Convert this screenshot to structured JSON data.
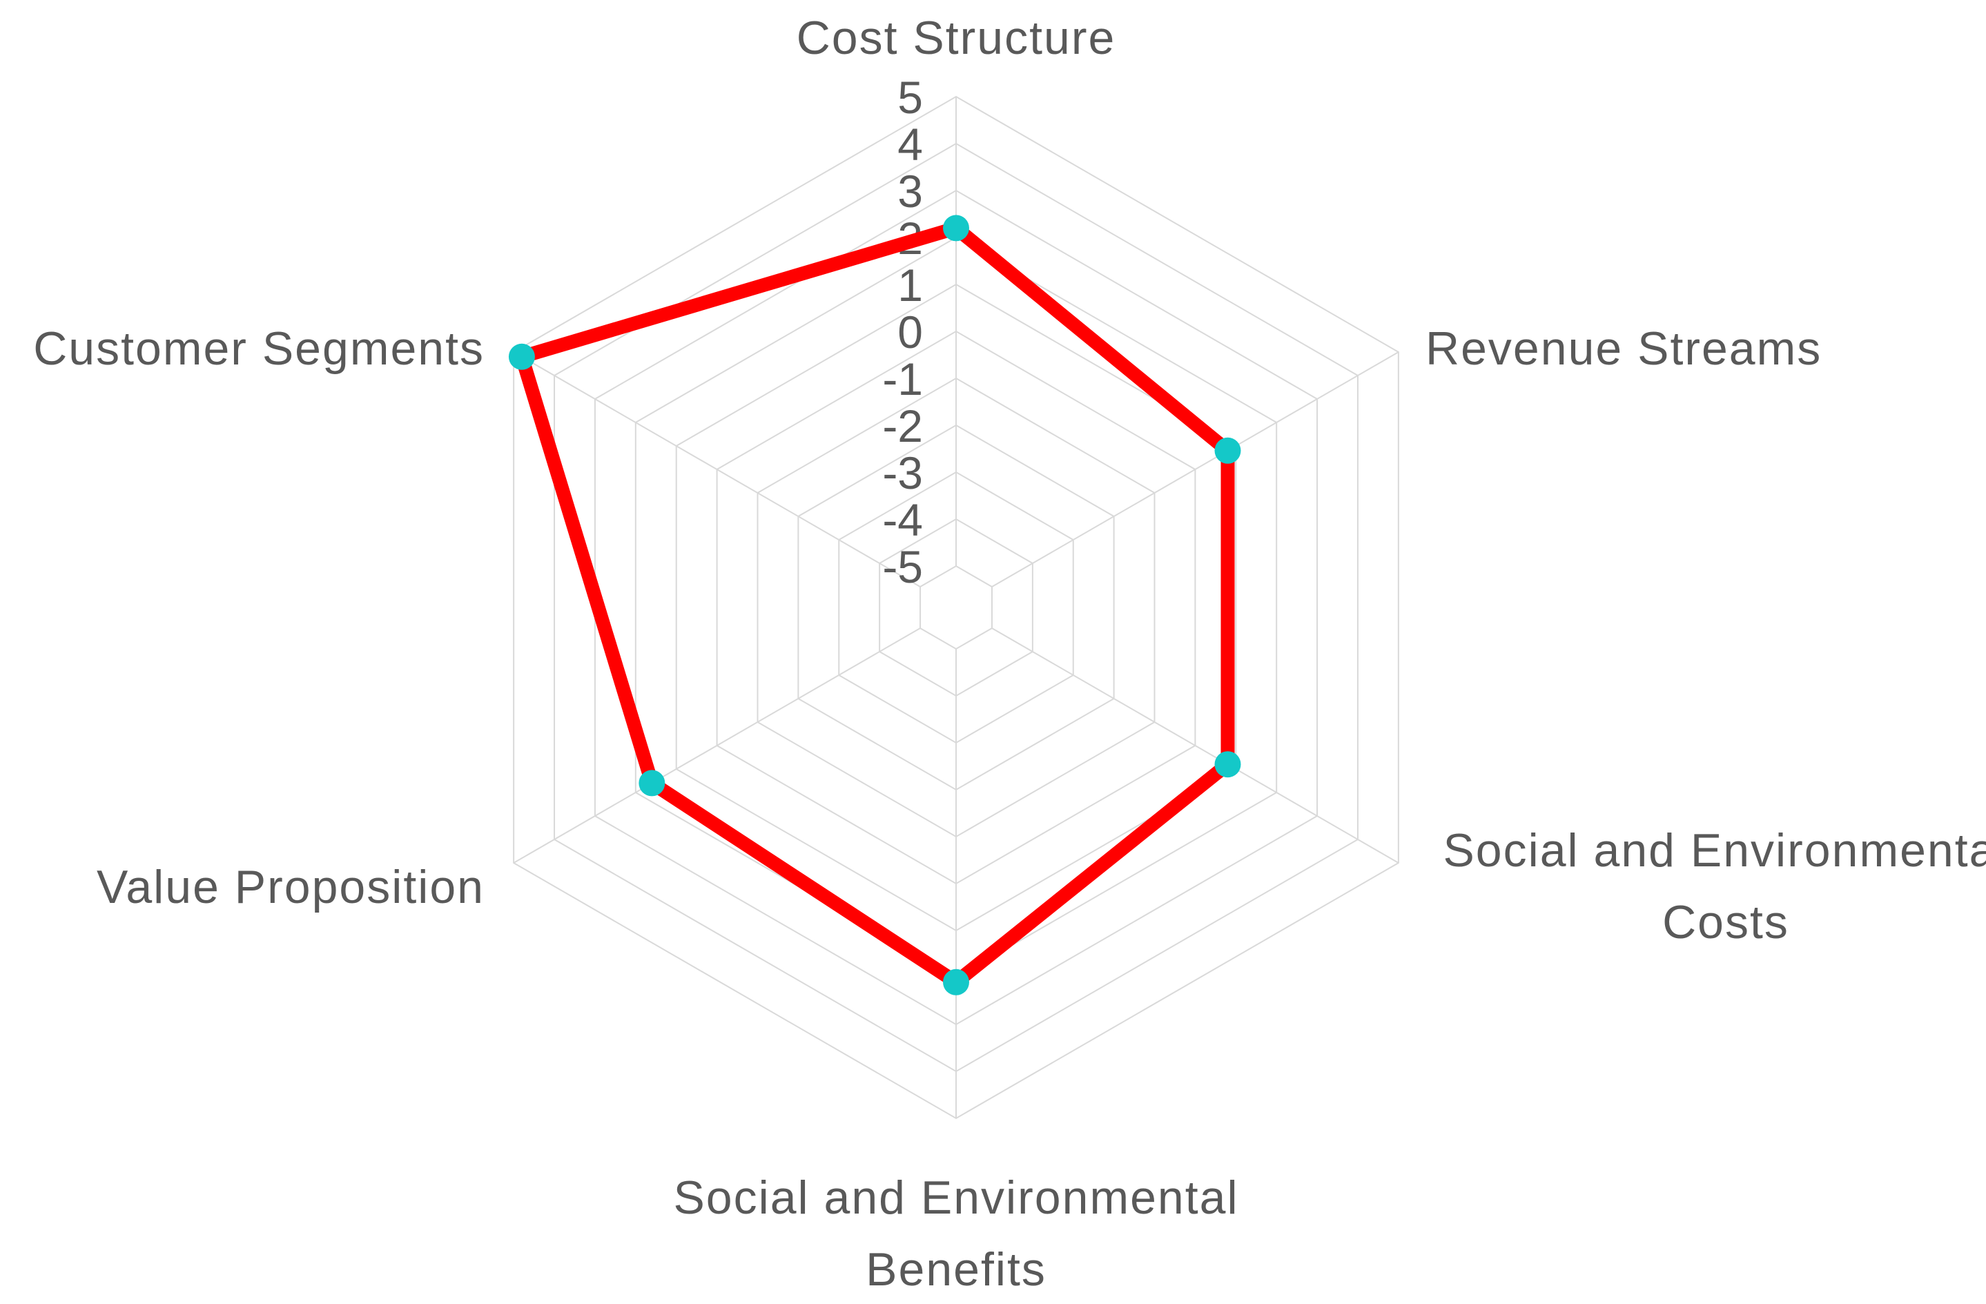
{
  "colors": {
    "series_line": "#ff0000",
    "series_marker": "#14c8c8",
    "gridline": "#d9d9d9",
    "text": "#595959",
    "background": "#ffffff"
  },
  "chart_data": {
    "type": "radar",
    "title": "",
    "categories": [
      [
        "Cost Structure"
      ],
      [
        "Revenue Streams"
      ],
      [
        "Social and Environmental",
        "Costs"
      ],
      [
        "Social and Environmental",
        "Benefits"
      ],
      [
        "Value Proposition"
      ],
      [
        "Customer Segments"
      ]
    ],
    "axis": {
      "min": -5,
      "max": 5,
      "major_unit": 1,
      "tick_labels": [
        "5",
        "4",
        "3",
        "2",
        "1",
        "0",
        "-1",
        "-2",
        "-3",
        "-4",
        "-5"
      ]
    },
    "gridlines": true,
    "legend": "none",
    "series": [
      {
        "values": [
          2.2,
          0.8,
          0.8,
          2.1,
          1.6,
          4.8
        ],
        "markers": true
      }
    ]
  }
}
